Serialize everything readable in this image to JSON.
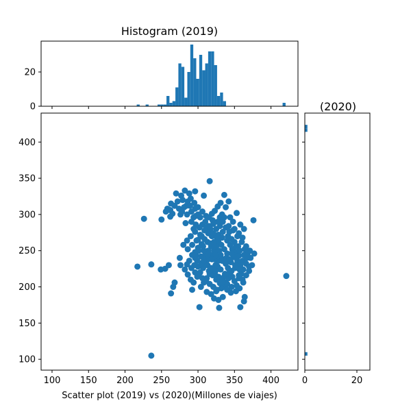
{
  "chart_data": [
    {
      "type": "scatter",
      "xlabel": "Scatter plot (2019) vs (2020)(Millones de viajes)",
      "ylabel": "",
      "xlim": [
        85,
        437
      ],
      "ylim": [
        85,
        440
      ],
      "xticks": [
        100,
        150,
        200,
        250,
        300,
        350,
        400
      ],
      "yticks": [
        100,
        150,
        200,
        250,
        300,
        350,
        400
      ],
      "color": "#1f77b4",
      "points": [
        [
          236,
          105
        ],
        [
          217,
          228
        ],
        [
          236,
          231
        ],
        [
          421,
          215
        ],
        [
          302,
          172
        ],
        [
          329,
          171
        ],
        [
          358,
          172
        ],
        [
          363,
          180
        ],
        [
          364,
          186
        ],
        [
          312,
          193
        ],
        [
          292,
          196
        ],
        [
          263,
          191
        ],
        [
          266,
          200
        ],
        [
          268,
          206
        ],
        [
          249,
          224
        ],
        [
          255,
          225
        ],
        [
          260,
          230
        ],
        [
          276,
          230
        ],
        [
          275,
          240
        ],
        [
          296,
          240
        ],
        [
          300,
          265
        ],
        [
          305,
          270
        ],
        [
          283,
          288
        ],
        [
          291,
          290
        ],
        [
          294,
          296
        ],
        [
          276,
          300
        ],
        [
          265,
          301
        ],
        [
          262,
          297
        ],
        [
          258,
          308
        ],
        [
          256,
          304
        ],
        [
          263,
          315
        ],
        [
          272,
          318
        ],
        [
          284,
          312
        ],
        [
          296,
          308
        ],
        [
          300,
          300
        ],
        [
          303,
          296
        ],
        [
          306,
          286
        ],
        [
          312,
          282
        ],
        [
          316,
          346
        ],
        [
          336,
          327
        ],
        [
          342,
          318
        ],
        [
          353,
          302
        ],
        [
          376,
          292
        ],
        [
          363,
          280
        ],
        [
          358,
          286
        ],
        [
          348,
          290
        ],
        [
          226,
          294
        ],
        [
          250,
          293
        ],
        [
          270,
          329
        ],
        [
          282,
          333
        ],
        [
          277,
          326
        ],
        [
          288,
          329
        ],
        [
          296,
          332
        ],
        [
          308,
          326
        ],
        [
          311,
          298
        ],
        [
          319,
          301
        ],
        [
          323,
          305
        ],
        [
          327,
          311
        ],
        [
          330,
          296
        ],
        [
          328,
          272
        ],
        [
          333,
          268
        ],
        [
          340,
          264
        ],
        [
          344,
          258
        ],
        [
          347,
          252
        ],
        [
          352,
          248
        ],
        [
          356,
          243
        ],
        [
          361,
          236
        ],
        [
          366,
          232
        ],
        [
          370,
          228
        ],
        [
          377,
          246
        ],
        [
          372,
          240
        ],
        [
          368,
          246
        ],
        [
          364,
          252
        ],
        [
          355,
          256
        ],
        [
          350,
          262
        ],
        [
          343,
          276
        ],
        [
          338,
          282
        ],
        [
          334,
          290
        ],
        [
          321,
          287
        ],
        [
          317,
          280
        ],
        [
          314,
          274
        ],
        [
          309,
          266
        ],
        [
          305,
          259
        ],
        [
          300,
          254
        ],
        [
          296,
          248
        ],
        [
          292,
          244
        ],
        [
          288,
          236
        ],
        [
          285,
          231
        ],
        [
          282,
          224
        ],
        [
          286,
          217
        ],
        [
          290,
          210
        ],
        [
          294,
          206
        ],
        [
          299,
          214
        ],
        [
          303,
          220
        ],
        [
          307,
          226
        ],
        [
          311,
          232
        ],
        [
          314,
          238
        ],
        [
          318,
          244
        ],
        [
          322,
          250
        ],
        [
          325,
          256
        ],
        [
          328,
          262
        ],
        [
          331,
          244
        ],
        [
          335,
          238
        ],
        [
          338,
          232
        ],
        [
          341,
          226
        ],
        [
          344,
          220
        ],
        [
          347,
          214
        ],
        [
          350,
          208
        ],
        [
          353,
          202
        ],
        [
          356,
          212
        ],
        [
          359,
          218
        ],
        [
          362,
          224
        ],
        [
          358,
          230
        ],
        [
          354,
          236
        ],
        [
          349,
          241
        ],
        [
          345,
          234
        ],
        [
          340,
          246
        ],
        [
          336,
          252
        ],
        [
          332,
          258
        ],
        [
          328,
          236
        ],
        [
          324,
          230
        ],
        [
          320,
          224
        ],
        [
          316,
          218
        ],
        [
          312,
          212
        ],
        [
          308,
          206
        ],
        [
          304,
          200
        ],
        [
          310,
          244
        ],
        [
          314,
          250
        ],
        [
          318,
          256
        ],
        [
          322,
          262
        ],
        [
          326,
          268
        ],
        [
          319,
          270
        ],
        [
          313,
          262
        ],
        [
          307,
          256
        ],
        [
          301,
          250
        ],
        [
          297,
          244
        ],
        [
          300,
          228
        ],
        [
          305,
          233
        ],
        [
          309,
          238
        ],
        [
          315,
          222
        ],
        [
          320,
          216
        ],
        [
          325,
          210
        ],
        [
          330,
          205
        ],
        [
          335,
          200
        ],
        [
          340,
          196
        ],
        [
          345,
          192
        ],
        [
          334,
          186
        ],
        [
          328,
          182
        ],
        [
          322,
          184
        ],
        [
          318,
          190
        ],
        [
          325,
          194
        ],
        [
          332,
          198
        ],
        [
          338,
          206
        ],
        [
          342,
          212
        ],
        [
          337,
          218
        ],
        [
          331,
          224
        ],
        [
          327,
          228
        ],
        [
          323,
          238
        ],
        [
          329,
          242
        ],
        [
          333,
          236
        ],
        [
          339,
          240
        ],
        [
          346,
          246
        ],
        [
          351,
          230
        ],
        [
          357,
          224
        ],
        [
          362,
          206
        ],
        [
          366,
          216
        ],
        [
          370,
          222
        ],
        [
          374,
          230
        ],
        [
          360,
          262
        ],
        [
          354,
          270
        ],
        [
          348,
          278
        ],
        [
          342,
          284
        ],
        [
          336,
          296
        ],
        [
          330,
          284
        ],
        [
          325,
          280
        ],
        [
          320,
          292
        ],
        [
          315,
          296
        ],
        [
          310,
          290
        ],
        [
          306,
          304
        ],
        [
          300,
          310
        ],
        [
          295,
          316
        ],
        [
          290,
          322
        ],
        [
          286,
          318
        ],
        [
          281,
          310
        ],
        [
          278,
          304
        ],
        [
          285,
          300
        ],
        [
          291,
          304
        ],
        [
          297,
          298
        ],
        [
          302,
          282
        ],
        [
          296,
          276
        ],
        [
          290,
          270
        ],
        [
          285,
          264
        ],
        [
          280,
          258
        ],
        [
          286,
          252
        ],
        [
          292,
          258
        ],
        [
          298,
          264
        ],
        [
          303,
          272
        ],
        [
          309,
          278
        ],
        [
          315,
          284
        ],
        [
          321,
          274
        ],
        [
          327,
          290
        ],
        [
          333,
          300
        ],
        [
          338,
          310
        ],
        [
          344,
          296
        ],
        [
          350,
          280
        ],
        [
          356,
          274
        ],
        [
          361,
          268
        ],
        [
          366,
          256
        ],
        [
          371,
          250
        ],
        [
          367,
          240
        ],
        [
          363,
          244
        ],
        [
          357,
          250
        ],
        [
          352,
          256
        ],
        [
          346,
          266
        ],
        [
          341,
          270
        ],
        [
          334,
          276
        ],
        [
          329,
          250
        ],
        [
          324,
          244
        ],
        [
          319,
          238
        ],
        [
          313,
          244
        ],
        [
          308,
          250
        ],
        [
          304,
          242
        ],
        [
          299,
          236
        ],
        [
          295,
          230
        ],
        [
          291,
          226
        ],
        [
          296,
          220
        ],
        [
          301,
          216
        ],
        [
          306,
          212
        ],
        [
          311,
          208
        ],
        [
          316,
          204
        ],
        [
          321,
          200
        ],
        [
          326,
          196
        ],
        [
          331,
          210
        ],
        [
          336,
          214
        ],
        [
          341,
          218
        ],
        [
          346,
          222
        ],
        [
          351,
          226
        ],
        [
          356,
          216
        ],
        [
          361,
          210
        ],
        [
          357,
          198
        ],
        [
          352,
          194
        ],
        [
          346,
          200
        ],
        [
          340,
          204
        ],
        [
          334,
          208
        ],
        [
          328,
          214
        ],
        [
          323,
          218
        ],
        [
          318,
          226
        ],
        [
          313,
          230
        ],
        [
          308,
          236
        ],
        [
          317,
          260
        ],
        [
          331,
          316
        ],
        [
          274,
          308
        ],
        [
          268,
          312
        ],
        [
          262,
          306
        ],
        [
          279,
          320
        ],
        [
          289,
          312
        ],
        [
          297,
          286
        ],
        [
          294,
          280
        ],
        [
          324,
          222
        ],
        [
          343,
          238
        ]
      ]
    },
    {
      "type": "bar",
      "title": "Histogram (2019)",
      "xlim": [
        85,
        437
      ],
      "ylim": [
        0,
        38
      ],
      "yticks": [
        0,
        20
      ],
      "bin_start": 216,
      "bin_width": 4.08,
      "color": "#1f77b4",
      "values": [
        1,
        0,
        0,
        1,
        0,
        0,
        0,
        1,
        1,
        1,
        6,
        2,
        3,
        11,
        25,
        23,
        5,
        20,
        36,
        28,
        16,
        30,
        21,
        25,
        32,
        32,
        24,
        6,
        8,
        3,
        0,
        0,
        0,
        0,
        0,
        0,
        0,
        0,
        0,
        0,
        0,
        0,
        0,
        0,
        0,
        0,
        0,
        0,
        0,
        2
      ]
    },
    {
      "type": "bar",
      "orientation": "horizontal",
      "title": "(2020)",
      "xlim": [
        0,
        25
      ],
      "xticks": [
        0,
        20
      ],
      "ylim": [
        85,
        440
      ],
      "bin_start": 105,
      "bin_width": 4.83,
      "color": "#1f77b4",
      "values": [
        1,
        0,
        0,
        0,
        0,
        0,
        0,
        0,
        0,
        0,
        0,
        0,
        0,
        0,
        0,
        0,
        0,
        0,
        0,
        0,
        0,
        0,
        0,
        0,
        0,
        0,
        0,
        0,
        0,
        0,
        0,
        0,
        0,
        0,
        0,
        0,
        0,
        0,
        0,
        0,
        0,
        0,
        0,
        0,
        0,
        0,
        0,
        0,
        0,
        0,
        0,
        0,
        0,
        0,
        0,
        0,
        0,
        0,
        0,
        0,
        0,
        0,
        0,
        0,
        1,
        1
      ]
    }
  ]
}
